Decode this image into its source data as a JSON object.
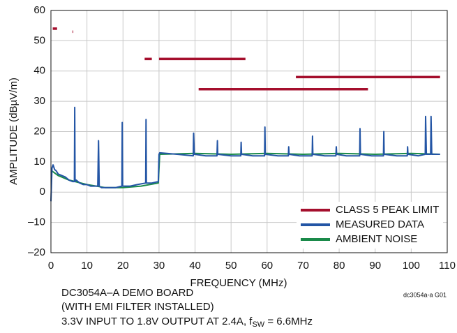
{
  "chart_data": {
    "type": "line",
    "y_label": "AMPLITUDE (dBµV/m)",
    "x_label": "FREQUENCY (MHz)",
    "notes": [
      "DC3054A–A DEMO BOARD",
      "(WITH EMI FILTER INSTALLED)"
    ],
    "note_last": [
      "3.3V INPUT TO 1.8V OUTPUT AT 2.4A, f",
      "SW",
      " = 6.6MHz"
    ],
    "figure_id": "dc3054a-a G01",
    "xlim": [
      0,
      110
    ],
    "xticks": [
      0,
      10,
      20,
      30,
      40,
      50,
      60,
      70,
      80,
      90,
      100,
      110
    ],
    "ylim": [
      -20,
      60
    ],
    "yticks": [
      {
        "value": -20,
        "label": "–20"
      },
      {
        "value": -10,
        "label": "–10"
      },
      0,
      10,
      20,
      30,
      40,
      50,
      60
    ],
    "grid": true,
    "legend": "lower right",
    "series": [
      {
        "name": "CLASS 5 PEAK LIMIT",
        "color": "#a50f2d",
        "x": [
          0.5,
          1.7,
          null,
          6,
          6.2,
          null,
          26,
          28,
          null,
          30,
          54,
          null,
          41,
          88,
          null,
          68,
          108
        ],
        "values": [
          54,
          54,
          null,
          53,
          53,
          null,
          44,
          44,
          null,
          44,
          44,
          null,
          34,
          34,
          null,
          38,
          38
        ]
      },
      {
        "name": "MEASURED DATA",
        "color": "#2355a5",
        "x": [
          0,
          0.3,
          0.6,
          1,
          1.5,
          2,
          3,
          4,
          5,
          6,
          6.5,
          6.6,
          6.7,
          7,
          8,
          9,
          10,
          11,
          12,
          13,
          13.2,
          13.4,
          14,
          16,
          18,
          19.7,
          19.8,
          19.9,
          22,
          24,
          26.3,
          26.4,
          26.5,
          28,
          29.8,
          30,
          30.2,
          35,
          39.5,
          39.6,
          39.8,
          43,
          46.1,
          46.2,
          46.3,
          50,
          52.7,
          52.8,
          52.9,
          56,
          59.3,
          59.4,
          59.5,
          63,
          65.9,
          66,
          66.1,
          69,
          72.5,
          72.6,
          72.7,
          76,
          79.1,
          79.2,
          79.3,
          82,
          85.7,
          85.8,
          85.9,
          89,
          92.3,
          92.4,
          92.5,
          96,
          98.9,
          99,
          99.1,
          102,
          103.9,
          104,
          104.2,
          105.4,
          105.5,
          105.7,
          108
        ],
        "values": [
          -3,
          8,
          9,
          7.5,
          7,
          6,
          5.5,
          5,
          4,
          3.5,
          3.5,
          28,
          3.5,
          4,
          3,
          2.5,
          2.5,
          2,
          2,
          2,
          17,
          2,
          1.5,
          1.5,
          1.5,
          2,
          23,
          2,
          2,
          2.5,
          3,
          24,
          3,
          3,
          3.5,
          12.5,
          13,
          12.5,
          12,
          19.5,
          12.5,
          12,
          12,
          17,
          12.5,
          12,
          12,
          16.5,
          12.5,
          12,
          12,
          21.5,
          12.5,
          12,
          12,
          15,
          12.5,
          12,
          12,
          18.5,
          12.5,
          12,
          12,
          15,
          12.5,
          12,
          12,
          21,
          12.5,
          12,
          12,
          20,
          12.5,
          12,
          12,
          15,
          12.5,
          12,
          12.5,
          25,
          12.5,
          12.5,
          25,
          12.5,
          12.5
        ]
      },
      {
        "name": "AMBIENT NOISE",
        "color": "#1a8a4a",
        "x": [
          0.3,
          2,
          5,
          10,
          15,
          20,
          25,
          29.8,
          30.2,
          40,
          50,
          60,
          70,
          80,
          90,
          100,
          108
        ],
        "values": [
          7,
          5.5,
          4,
          2.5,
          1.5,
          1.5,
          2,
          3,
          12.5,
          12.8,
          12.5,
          12.8,
          12.5,
          12.8,
          12.5,
          12.8,
          12.5
        ]
      }
    ]
  }
}
